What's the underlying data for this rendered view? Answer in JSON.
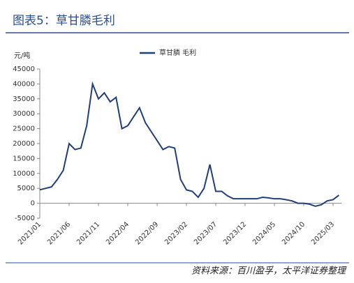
{
  "header": {
    "title": "图表5：草甘膦毛利"
  },
  "chart_data": {
    "type": "line",
    "y_label": "元/吨",
    "categories": [
      "2021/01",
      null,
      null,
      null,
      null,
      "2021/06",
      null,
      null,
      null,
      null,
      "2021/11",
      null,
      null,
      null,
      null,
      "2022/04",
      null,
      null,
      null,
      null,
      "2022/09",
      null,
      null,
      null,
      null,
      "2023/02",
      null,
      null,
      null,
      null,
      "2023/07",
      null,
      null,
      null,
      null,
      "2023/12",
      null,
      null,
      null,
      null,
      "2024/05",
      null,
      null,
      null,
      null,
      "2024/10",
      null,
      null,
      null,
      null,
      "2025/03",
      null
    ],
    "series": [
      {
        "name": "草甘膦 毛利",
        "color": "#1f3f7a",
        "values": [
          4500,
          5000,
          5500,
          8000,
          11000,
          20000,
          18000,
          18500,
          26000,
          40000,
          35000,
          37000,
          34000,
          35500,
          25000,
          26000,
          29000,
          32000,
          27000,
          24000,
          21000,
          18000,
          19000,
          18500,
          8000,
          4500,
          4000,
          2000,
          5000,
          13000,
          4000,
          4000,
          2500,
          1500,
          1500,
          1500,
          1500,
          1500,
          2000,
          1800,
          1500,
          1500,
          1200,
          800,
          0,
          0,
          -300,
          -1000,
          -500,
          800,
          1200,
          2700
        ]
      }
    ],
    "ylim": [
      -5000,
      45000
    ],
    "yticks": [
      -5000,
      0,
      5000,
      10000,
      15000,
      20000,
      25000,
      30000,
      35000,
      40000,
      45000
    ],
    "legend": "top"
  },
  "footer": {
    "source": "资料来源：百川盈孚，太平洋证券整理"
  }
}
